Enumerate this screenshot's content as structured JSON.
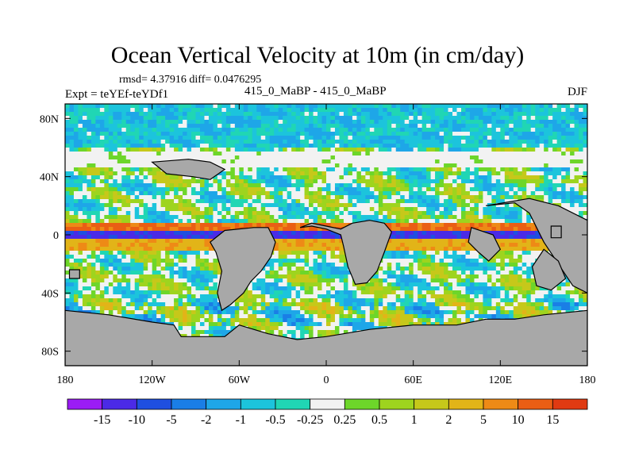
{
  "chart_data": {
    "type": "heatmap",
    "title": "Ocean Vertical Velocity at 10m (in cm/day)",
    "stats_text": "rmsd= 4.37916 diff= 0.0476295",
    "experiment_text": "Expt = teYEf-teYDf1",
    "case_text": "415_0_MaBP - 415_0_MaBP",
    "season": "DJF",
    "x_ticks": [
      {
        "value": -180,
        "label": "180"
      },
      {
        "value": -120,
        "label": "120W"
      },
      {
        "value": -60,
        "label": "60W"
      },
      {
        "value": 0,
        "label": "0"
      },
      {
        "value": 60,
        "label": "60E"
      },
      {
        "value": 120,
        "label": "120E"
      },
      {
        "value": 180,
        "label": "180"
      }
    ],
    "y_ticks": [
      {
        "value": 80,
        "label": "80N"
      },
      {
        "value": 40,
        "label": "40N"
      },
      {
        "value": 0,
        "label": "0"
      },
      {
        "value": -40,
        "label": "40S"
      },
      {
        "value": -80,
        "label": "80S"
      }
    ],
    "xlim": [
      -180,
      180
    ],
    "ylim": [
      -90,
      90
    ],
    "land_color": "#a8a8a8",
    "colorbar": {
      "labels": [
        "-15",
        "-10",
        "-5",
        "-2",
        "-1",
        "-0.5",
        "-0.25",
        "0.25",
        "0.5",
        "1",
        "2",
        "5",
        "10",
        "15"
      ],
      "colors": [
        "#9b1cf5",
        "#4b2ae6",
        "#1f4fe0",
        "#1a7ee6",
        "#1ea6e8",
        "#1cc4dc",
        "#20d6b4",
        "#f2f2f2",
        "#6dd62a",
        "#9ed41e",
        "#c6c81a",
        "#e2b418",
        "#ee8a16",
        "#ea5e14",
        "#e03a12"
      ]
    }
  }
}
